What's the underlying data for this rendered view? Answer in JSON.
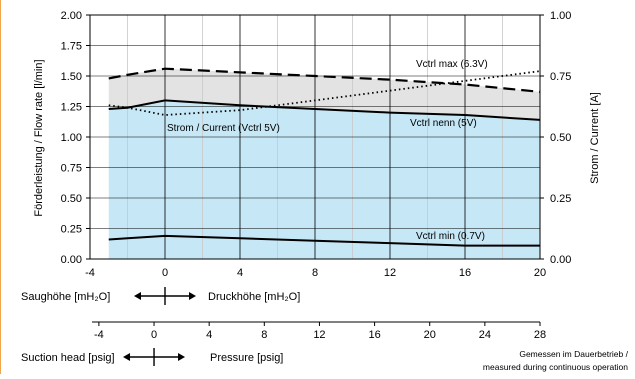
{
  "colors": {
    "accent_edge": "#f0a64a",
    "area_fill": "#c6e7f5",
    "band_fill": "#e3e3e3",
    "grid_major": "#000000",
    "grid_minor": "#c8c8c8"
  },
  "chart_data": {
    "type": "line",
    "x_axis": {
      "range": [
        -4,
        20
      ],
      "ticks": [
        -4,
        0,
        4,
        8,
        12,
        16,
        20
      ],
      "label_left": "Saughöhe [mH₂O]",
      "label_right": "Druckhöhe [mH₂O]"
    },
    "x_axis_secondary": {
      "unit": "psig",
      "ticks": [
        -4,
        0,
        4,
        8,
        12,
        16,
        20,
        24,
        28
      ],
      "label_left": "Suction head [psig]",
      "label_right": "Pressure [psig]"
    },
    "y_axis_left": {
      "label": "Förderleistung / Flow rate [l/min]",
      "range": [
        0,
        2
      ],
      "ticks": [
        "0.00",
        "0.25",
        "0.50",
        "0.75",
        "1.00",
        "1.25",
        "1.50",
        "1.75",
        "2.00"
      ]
    },
    "y_axis_right": {
      "label": "Strom / Current [A]",
      "range": [
        0,
        1
      ],
      "ticks": [
        "0.00",
        "0.25",
        "0.50",
        "0.75",
        "1.00"
      ]
    },
    "grid": true,
    "series": [
      {
        "name": "Vctrl max (6.3V)",
        "axis": "left",
        "style": "dashed",
        "x": [
          -3,
          -2,
          0,
          4,
          8,
          12,
          16,
          20
        ],
        "y": [
          1.48,
          1.51,
          1.56,
          1.53,
          1.5,
          1.47,
          1.43,
          1.37
        ]
      },
      {
        "name": "Vctrl nenn (5V)",
        "axis": "left",
        "style": "solid",
        "x": [
          -3,
          -2,
          0,
          4,
          8,
          12,
          16,
          20
        ],
        "y": [
          1.23,
          1.24,
          1.3,
          1.26,
          1.23,
          1.2,
          1.18,
          1.14
        ]
      },
      {
        "name": "Vctrl min (0.7V)",
        "axis": "left",
        "style": "solid",
        "x": [
          -3,
          -2,
          0,
          4,
          8,
          12,
          16,
          20
        ],
        "y": [
          0.16,
          0.17,
          0.19,
          0.17,
          0.15,
          0.13,
          0.11,
          0.11
        ]
      },
      {
        "name": "Strom / Current (Vctrl 5V)",
        "axis": "right",
        "style": "dotted",
        "x": [
          -3,
          -2,
          0,
          4,
          8,
          12,
          16,
          20
        ],
        "y": [
          0.63,
          0.62,
          0.59,
          0.61,
          0.65,
          0.69,
          0.73,
          0.77
        ]
      }
    ],
    "annotations": {
      "note_line1": "Gemessen im Dauerbetrieb /",
      "note_line2": "measured during continuous operation"
    }
  }
}
